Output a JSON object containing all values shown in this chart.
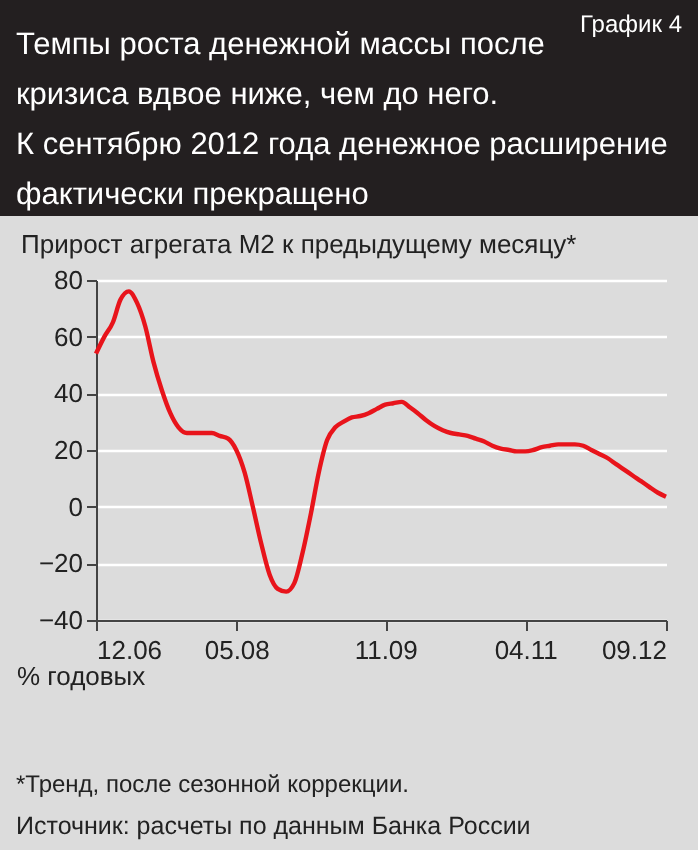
{
  "chart_data": {
    "type": "line",
    "title": "Темпы роста денежной массы после\nкризиса вдвое ниже, чем до него.\nК сентябрю 2012 года денежное расширение\nфактически прекращено",
    "ylabel": "Прирост агрегата М2 к предыдущему месяцу*",
    "xlabel": "% годовых",
    "annotations": [
      "График 4",
      "*Тренд, после сезонной коррекции.",
      "Источник: расчеты по данным Банка России"
    ],
    "x": [
      "2006-12",
      "2007-01",
      "2007-02",
      "2007-03",
      "2007-04",
      "2007-05",
      "2007-06",
      "2007-07",
      "2007-08",
      "2007-09",
      "2007-10",
      "2007-11",
      "2007-12",
      "2008-01",
      "2008-02",
      "2008-03",
      "2008-04",
      "2008-05",
      "2008-06",
      "2008-07",
      "2008-08",
      "2008-09",
      "2008-10",
      "2008-11",
      "2008-12",
      "2009-01",
      "2009-02",
      "2009-03",
      "2009-04",
      "2009-05",
      "2009-06",
      "2009-07",
      "2009-08",
      "2009-09",
      "2009-10",
      "2009-11",
      "2009-12",
      "2010-01",
      "2010-02",
      "2010-03",
      "2010-04",
      "2010-05",
      "2010-06",
      "2010-07",
      "2010-08",
      "2010-09",
      "2010-10",
      "2010-11",
      "2010-12",
      "2011-01",
      "2011-02",
      "2011-03",
      "2011-04",
      "2011-05",
      "2011-06",
      "2011-07",
      "2011-08",
      "2011-09",
      "2011-10",
      "2011-11",
      "2011-12",
      "2012-01",
      "2012-02",
      "2012-03",
      "2012-04",
      "2012-05",
      "2012-06",
      "2012-07",
      "2012-08",
      "2012-09"
    ],
    "series": [
      {
        "color": "#e8141b",
        "values": [
          54,
          60,
          65,
          73,
          76,
          72,
          63.5,
          51,
          41,
          33,
          28,
          26,
          26,
          26,
          26,
          25,
          24,
          20,
          12,
          0,
          -13,
          -24,
          -29,
          -30,
          -27,
          -16,
          -2,
          12,
          23.5,
          28,
          30,
          31.5,
          32,
          33,
          34.5,
          36,
          36.5,
          37,
          35,
          33,
          30.5,
          28.5,
          27,
          26,
          25.5,
          25,
          24,
          23,
          21.5,
          20.5,
          20,
          19.5,
          19.5,
          20,
          21,
          21.5,
          22,
          22,
          22,
          21.5,
          20,
          18.5,
          17,
          15,
          13,
          11,
          9,
          7,
          5,
          3.5
        ]
      }
    ],
    "xlim": [
      "2006-12",
      "2012-09"
    ],
    "xticks": [
      {
        "value": "2006-12",
        "label": "12.06"
      },
      {
        "value": "2008-05",
        "label": "05.08"
      },
      {
        "value": "2009-11",
        "label": "11.09"
      },
      {
        "value": "2011-04",
        "label": "04.11"
      },
      {
        "value": "2012-09",
        "label": "09.12"
      }
    ],
    "ylim": [
      -40,
      80
    ],
    "yticks": [
      -40,
      -20,
      0,
      20,
      40,
      60,
      80
    ],
    "grid": "y",
    "legend": false,
    "marker": "none",
    "line_style": "solid"
  }
}
